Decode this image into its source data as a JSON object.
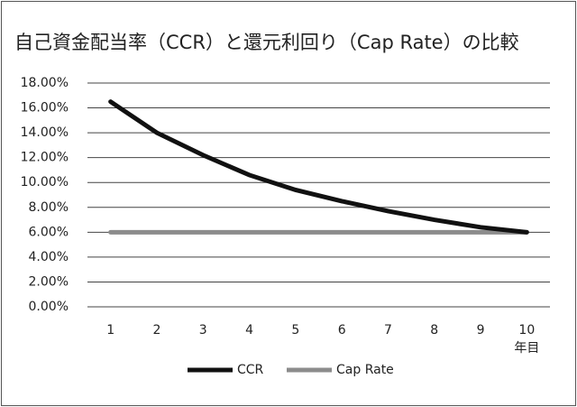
{
  "chart_data": {
    "type": "line",
    "title": "自己資金配当率（CCR）と還元利回り（Cap Rate）の比較",
    "categories": [
      "1",
      "2",
      "3",
      "4",
      "5",
      "6",
      "7",
      "8",
      "9",
      "10"
    ],
    "x_label": "年目",
    "series": [
      {
        "name": "CCR",
        "color": "#111111",
        "values": [
          16.5,
          14.0,
          12.2,
          10.6,
          9.4,
          8.5,
          7.7,
          7.0,
          6.4,
          6.0
        ]
      },
      {
        "name": "Cap Rate",
        "color": "#8c8c8c",
        "values": [
          6,
          6,
          6,
          6,
          6,
          6,
          6,
          6,
          6,
          6
        ]
      }
    ],
    "ylim": [
      0,
      18
    ],
    "yticks": [
      {
        "value": 0,
        "label": "0.00%"
      },
      {
        "value": 2,
        "label": "2.00%"
      },
      {
        "value": 4,
        "label": "4.00%"
      },
      {
        "value": 6,
        "label": "6.00%"
      },
      {
        "value": 8,
        "label": "8.00%"
      },
      {
        "value": 10,
        "label": "10.00%"
      },
      {
        "value": 12,
        "label": "12.00%"
      },
      {
        "value": 14,
        "label": "14.00%"
      },
      {
        "value": 16,
        "label": "16.00%"
      },
      {
        "value": 18,
        "label": "18.00%"
      }
    ],
    "grid": true
  }
}
